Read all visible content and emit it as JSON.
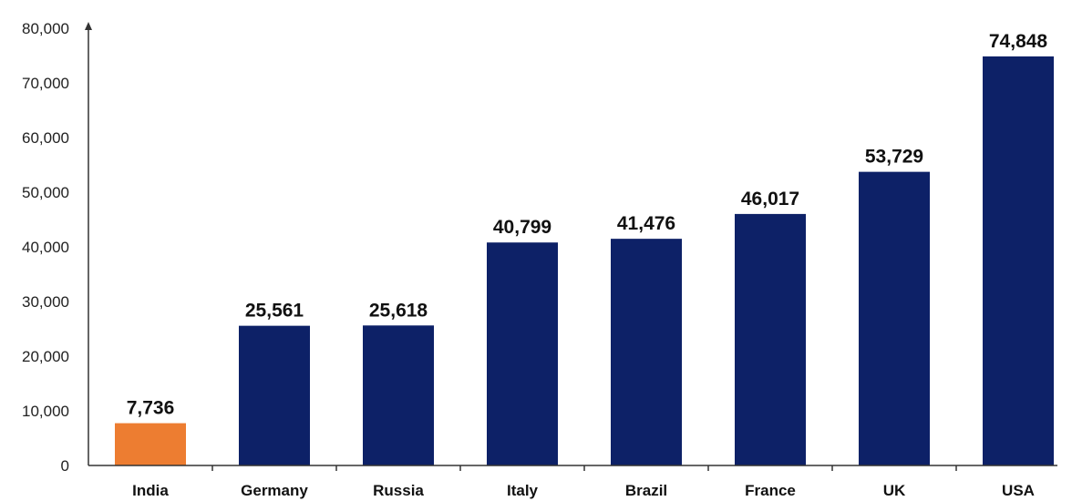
{
  "chart_data": {
    "type": "bar",
    "categories": [
      "India",
      "Germany",
      "Russia",
      "Italy",
      "Brazil",
      "France",
      "UK",
      "USA"
    ],
    "values": [
      7736,
      25561,
      25618,
      40799,
      41476,
      46017,
      53729,
      74848
    ],
    "value_labels": [
      "7,736",
      "25,561",
      "25,618",
      "40,799",
      "41,476",
      "46,017",
      "53,729",
      "74,848"
    ],
    "y_ticks": [
      0,
      10000,
      20000,
      30000,
      40000,
      50000,
      60000,
      70000,
      80000
    ],
    "y_tick_labels": [
      "0",
      "10,000",
      "20,000",
      "30,000",
      "40,000",
      "50,000",
      "60,000",
      "70,000",
      "80,000"
    ],
    "ylim": [
      0,
      80000
    ],
    "grid": false,
    "legend": "none",
    "colors": {
      "highlight": "#ED7D31",
      "default": "#0D2167",
      "axis": "#333333"
    },
    "highlight_index": 0
  }
}
